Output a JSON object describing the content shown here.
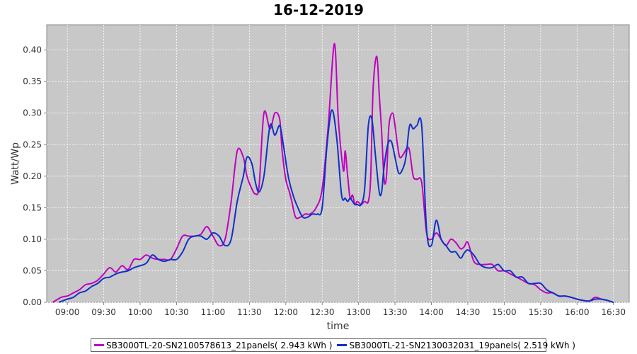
{
  "chart_data": {
    "type": "line",
    "title": "16-12-2019",
    "xlabel": "time",
    "ylabel": "Watt/Wp",
    "ylim": [
      0,
      0.44
    ],
    "xlim": [
      "08:43",
      "16:43"
    ],
    "grid": true,
    "legend_position": "bottom",
    "y_ticks": [
      "0.00",
      "0.05",
      "0.10",
      "0.15",
      "0.20",
      "0.25",
      "0.30",
      "0.35",
      "0.40"
    ],
    "x_ticks": [
      "09:00",
      "09:30",
      "10:00",
      "10:30",
      "11:00",
      "11:30",
      "12:00",
      "12:30",
      "13:00",
      "13:30",
      "14:00",
      "14:30",
      "15:00",
      "15:30",
      "16:00",
      "16:30"
    ],
    "series": [
      {
        "name": "SB3000TL-20-SN2100578613_21panels( 2.943 kWh )",
        "color": "#c000c0",
        "x": [
          "08:48",
          "08:55",
          "09:00",
          "09:05",
          "09:10",
          "09:15",
          "09:20",
          "09:25",
          "09:30",
          "09:35",
          "09:40",
          "09:45",
          "09:50",
          "09:55",
          "10:00",
          "10:05",
          "10:10",
          "10:15",
          "10:20",
          "10:25",
          "10:30",
          "10:35",
          "10:40",
          "10:45",
          "10:50",
          "10:55",
          "11:00",
          "11:05",
          "11:10",
          "11:15",
          "11:20",
          "11:25",
          "11:28",
          "11:32",
          "11:35",
          "11:38",
          "11:42",
          "11:47",
          "11:51",
          "11:55",
          "11:57",
          "12:00",
          "12:03",
          "12:05",
          "12:08",
          "12:12",
          "12:16",
          "12:20",
          "12:25",
          "12:30",
          "12:35",
          "12:40",
          "12:43",
          "12:45",
          "12:47",
          "12:48",
          "12:49",
          "12:51",
          "12:53",
          "12:55",
          "12:57",
          "12:59",
          "13:02",
          "13:05",
          "13:08",
          "13:10",
          "13:12",
          "13:15",
          "13:17",
          "13:19",
          "13:21",
          "13:23",
          "13:25",
          "13:28",
          "13:30",
          "13:32",
          "13:34",
          "13:37",
          "13:40",
          "13:42",
          "13:45",
          "13:48",
          "13:52",
          "13:56",
          "14:00",
          "14:04",
          "14:08",
          "14:12",
          "14:16",
          "14:20",
          "14:24",
          "14:27",
          "14:30",
          "14:35",
          "14:40",
          "14:45",
          "14:50",
          "14:55",
          "15:00",
          "15:05",
          "15:10",
          "15:15",
          "15:20",
          "15:25",
          "15:30",
          "15:35",
          "15:40",
          "15:45",
          "15:50",
          "15:55",
          "16:00",
          "16:05",
          "16:10",
          "16:15",
          "16:20",
          "16:25",
          "16:30"
        ],
        "y": [
          0.0,
          0.008,
          0.01,
          0.015,
          0.02,
          0.028,
          0.03,
          0.035,
          0.045,
          0.055,
          0.048,
          0.058,
          0.052,
          0.068,
          0.068,
          0.075,
          0.07,
          0.068,
          0.068,
          0.068,
          0.085,
          0.105,
          0.105,
          0.105,
          0.108,
          0.12,
          0.105,
          0.09,
          0.1,
          0.16,
          0.24,
          0.23,
          0.2,
          0.18,
          0.172,
          0.185,
          0.3,
          0.275,
          0.3,
          0.29,
          0.24,
          0.195,
          0.175,
          0.16,
          0.135,
          0.135,
          0.14,
          0.14,
          0.15,
          0.18,
          0.28,
          0.41,
          0.3,
          0.25,
          0.215,
          0.21,
          0.24,
          0.2,
          0.165,
          0.17,
          0.155,
          0.16,
          0.155,
          0.16,
          0.16,
          0.2,
          0.34,
          0.39,
          0.33,
          0.27,
          0.195,
          0.2,
          0.28,
          0.3,
          0.28,
          0.25,
          0.23,
          0.235,
          0.245,
          0.24,
          0.2,
          0.195,
          0.19,
          0.11,
          0.1,
          0.11,
          0.1,
          0.09,
          0.1,
          0.095,
          0.085,
          0.088,
          0.095,
          0.065,
          0.06,
          0.06,
          0.06,
          0.05,
          0.05,
          0.045,
          0.04,
          0.035,
          0.03,
          0.028,
          0.02,
          0.015,
          0.015,
          0.01,
          0.01,
          0.008,
          0.005,
          0.003,
          0.002,
          0.008,
          0.005,
          0.003,
          0.0
        ]
      },
      {
        "name": "SB3000TL-21-SN2130032031_19panels( 2.519 kWh )",
        "color": "#1030c8",
        "x": [
          "08:53",
          "09:00",
          "09:05",
          "09:10",
          "09:15",
          "09:20",
          "09:25",
          "09:30",
          "09:35",
          "09:40",
          "09:45",
          "09:50",
          "09:55",
          "10:00",
          "10:05",
          "10:10",
          "10:15",
          "10:20",
          "10:25",
          "10:30",
          "10:35",
          "10:40",
          "10:45",
          "10:50",
          "10:55",
          "11:00",
          "11:05",
          "11:10",
          "11:15",
          "11:20",
          "11:25",
          "11:28",
          "11:32",
          "11:35",
          "11:38",
          "11:42",
          "11:47",
          "11:51",
          "11:55",
          "11:58",
          "12:02",
          "12:06",
          "12:10",
          "12:14",
          "12:18",
          "12:22",
          "12:26",
          "12:30",
          "12:34",
          "12:38",
          "12:42",
          "12:46",
          "12:49",
          "12:51",
          "12:53",
          "12:55",
          "12:57",
          "12:59",
          "13:02",
          "13:05",
          "13:08",
          "13:11",
          "13:14",
          "13:17",
          "13:19",
          "13:21",
          "13:24",
          "13:27",
          "13:30",
          "13:33",
          "13:36",
          "13:39",
          "13:42",
          "13:45",
          "13:48",
          "13:52",
          "13:56",
          "14:00",
          "14:04",
          "14:08",
          "14:12",
          "14:16",
          "14:20",
          "14:24",
          "14:27",
          "14:30",
          "14:35",
          "14:40",
          "14:45",
          "14:50",
          "14:55",
          "15:00",
          "15:05",
          "15:10",
          "15:15",
          "15:20",
          "15:25",
          "15:30",
          "15:35",
          "15:40",
          "15:45",
          "15:50",
          "15:55",
          "16:00",
          "16:05",
          "16:10",
          "16:15",
          "16:20",
          "16:25",
          "16:30"
        ],
        "y": [
          0.0,
          0.005,
          0.008,
          0.015,
          0.018,
          0.025,
          0.03,
          0.038,
          0.04,
          0.045,
          0.048,
          0.05,
          0.055,
          0.058,
          0.062,
          0.075,
          0.068,
          0.065,
          0.068,
          0.068,
          0.08,
          0.1,
          0.105,
          0.105,
          0.1,
          0.11,
          0.105,
          0.09,
          0.1,
          0.16,
          0.2,
          0.23,
          0.22,
          0.19,
          0.175,
          0.2,
          0.28,
          0.265,
          0.28,
          0.25,
          0.2,
          0.17,
          0.15,
          0.135,
          0.135,
          0.14,
          0.14,
          0.15,
          0.25,
          0.305,
          0.26,
          0.17,
          0.165,
          0.16,
          0.165,
          0.16,
          0.155,
          0.155,
          0.155,
          0.18,
          0.28,
          0.29,
          0.23,
          0.175,
          0.175,
          0.215,
          0.25,
          0.255,
          0.23,
          0.205,
          0.21,
          0.23,
          0.28,
          0.275,
          0.28,
          0.28,
          0.115,
          0.09,
          0.13,
          0.1,
          0.09,
          0.08,
          0.08,
          0.07,
          0.078,
          0.083,
          0.075,
          0.06,
          0.055,
          0.055,
          0.06,
          0.05,
          0.05,
          0.04,
          0.04,
          0.03,
          0.03,
          0.03,
          0.02,
          0.015,
          0.01,
          0.01,
          0.008,
          0.005,
          0.003,
          0.002,
          0.005,
          0.005,
          0.003,
          0.0
        ]
      }
    ]
  }
}
